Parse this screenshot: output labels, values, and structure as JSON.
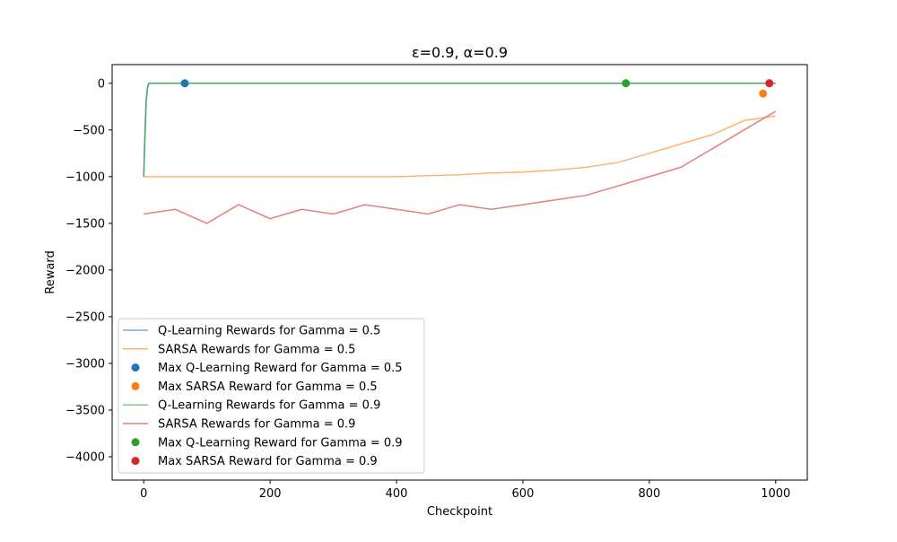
{
  "chart_data": {
    "type": "line",
    "title": "ε=0.9, α=0.9",
    "xlabel": "Checkpoint",
    "ylabel": "Reward",
    "xlim": [
      -50,
      1050
    ],
    "ylim": [
      -4250,
      200
    ],
    "xticks": [
      0,
      200,
      400,
      600,
      800,
      1000
    ],
    "yticks": [
      0,
      -500,
      -1000,
      -1500,
      -2000,
      -2500,
      -3000,
      -3500,
      -4000
    ],
    "xtick_labels": [
      "0",
      "200",
      "400",
      "600",
      "800",
      "1000"
    ],
    "ytick_labels": [
      "0",
      "−500",
      "−1000",
      "−1500",
      "−2000",
      "−2500",
      "−3000",
      "−3500",
      "−4000"
    ],
    "series": [
      {
        "name": "Q-Learning Rewards for Gamma = 0.5",
        "kind": "line",
        "color": "#1f77b4",
        "x": [
          0,
          2,
          4,
          6,
          8,
          10,
          1000
        ],
        "values": [
          -1000,
          -600,
          -200,
          -50,
          0,
          0,
          0
        ]
      },
      {
        "name": "SARSA Rewards for Gamma = 0.5",
        "kind": "line",
        "color": "#ff7f0e",
        "x": [
          0,
          100,
          200,
          300,
          400,
          450,
          500,
          550,
          600,
          650,
          700,
          750,
          800,
          850,
          900,
          950,
          1000
        ],
        "values": [
          -1000,
          -1000,
          -1000,
          -1000,
          -1000,
          -990,
          -980,
          -960,
          -950,
          -930,
          -900,
          -850,
          -750,
          -650,
          -550,
          -400,
          -350
        ]
      },
      {
        "name": "Max Q-Learning Reward for Gamma = 0.5",
        "kind": "scatter",
        "color": "#1f77b4",
        "x": [
          65
        ],
        "values": [
          0
        ]
      },
      {
        "name": "Max SARSA Reward for Gamma = 0.5",
        "kind": "scatter",
        "color": "#ff7f0e",
        "x": [
          980
        ],
        "values": [
          -110
        ]
      },
      {
        "name": "Q-Learning Rewards for Gamma = 0.9",
        "kind": "line",
        "color": "#2ca02c",
        "x": [
          0,
          2,
          4,
          6,
          8,
          10,
          1000
        ],
        "values": [
          -1000,
          -500,
          -150,
          -40,
          0,
          0,
          0
        ]
      },
      {
        "name": "SARSA Rewards for Gamma = 0.9",
        "kind": "line",
        "color": "#d62728",
        "x": [
          0,
          50,
          100,
          150,
          200,
          250,
          300,
          350,
          400,
          450,
          500,
          550,
          600,
          650,
          700,
          750,
          800,
          850,
          900,
          950,
          1000
        ],
        "values": [
          -1400,
          -1350,
          -1500,
          -1300,
          -1450,
          -1350,
          -1400,
          -1300,
          -1350,
          -1400,
          -1300,
          -1350,
          -1300,
          -1250,
          -1200,
          -1100,
          -1000,
          -900,
          -700,
          -500,
          -300
        ]
      },
      {
        "name": "Max Q-Learning Reward for Gamma = 0.9",
        "kind": "scatter",
        "color": "#2ca02c",
        "x": [
          763
        ],
        "values": [
          0
        ]
      },
      {
        "name": "Max SARSA Reward for Gamma = 0.9",
        "kind": "scatter",
        "color": "#d62728",
        "x": [
          990
        ],
        "values": [
          0
        ]
      }
    ]
  }
}
